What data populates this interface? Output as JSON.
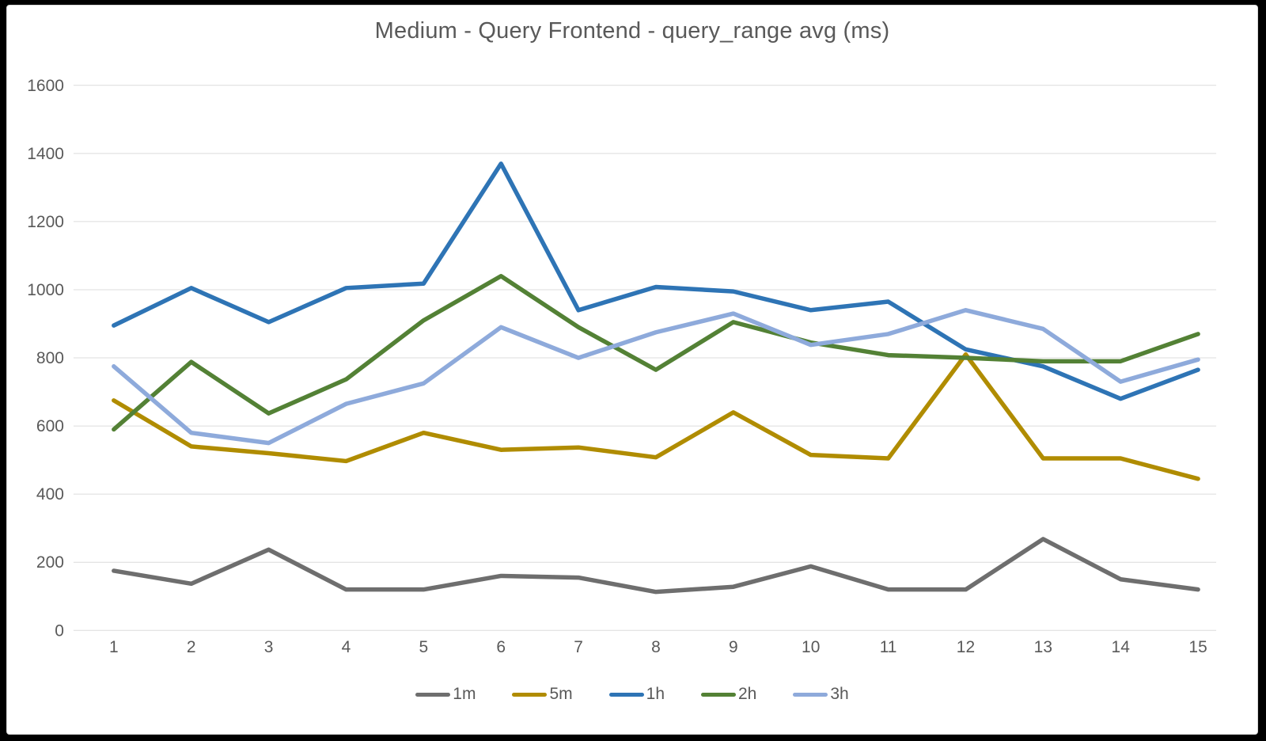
{
  "chart_data": {
    "type": "line",
    "title": "Medium - Query Frontend - query_range avg (ms)",
    "xlabel": "",
    "ylabel": "",
    "categories": [
      "1",
      "2",
      "3",
      "4",
      "5",
      "6",
      "7",
      "8",
      "9",
      "10",
      "11",
      "12",
      "13",
      "14",
      "15"
    ],
    "series": [
      {
        "name": "1m",
        "color": "#6E6E6E",
        "values": [
          175,
          137,
          237,
          120,
          120,
          160,
          155,
          113,
          128,
          188,
          120,
          120,
          268,
          150,
          120
        ]
      },
      {
        "name": "5m",
        "color": "#B08C00",
        "values": [
          675,
          540,
          520,
          497,
          580,
          530,
          537,
          508,
          640,
          515,
          505,
          810,
          505,
          505,
          445
        ]
      },
      {
        "name": "1h",
        "color": "#2E74B5",
        "values": [
          895,
          1005,
          905,
          1005,
          1018,
          1370,
          940,
          1008,
          995,
          940,
          965,
          825,
          775,
          680,
          765
        ]
      },
      {
        "name": "2h",
        "color": "#538135",
        "values": [
          590,
          788,
          637,
          737,
          910,
          1040,
          890,
          765,
          905,
          845,
          808,
          800,
          790,
          790,
          870
        ]
      },
      {
        "name": "3h",
        "color": "#8EAADB",
        "values": [
          775,
          580,
          550,
          665,
          725,
          890,
          800,
          875,
          930,
          838,
          870,
          940,
          885,
          730,
          795
        ]
      }
    ],
    "ylim": [
      0,
      1600
    ],
    "ytick_step": 200,
    "grid": true,
    "legend_position": "bottom"
  }
}
